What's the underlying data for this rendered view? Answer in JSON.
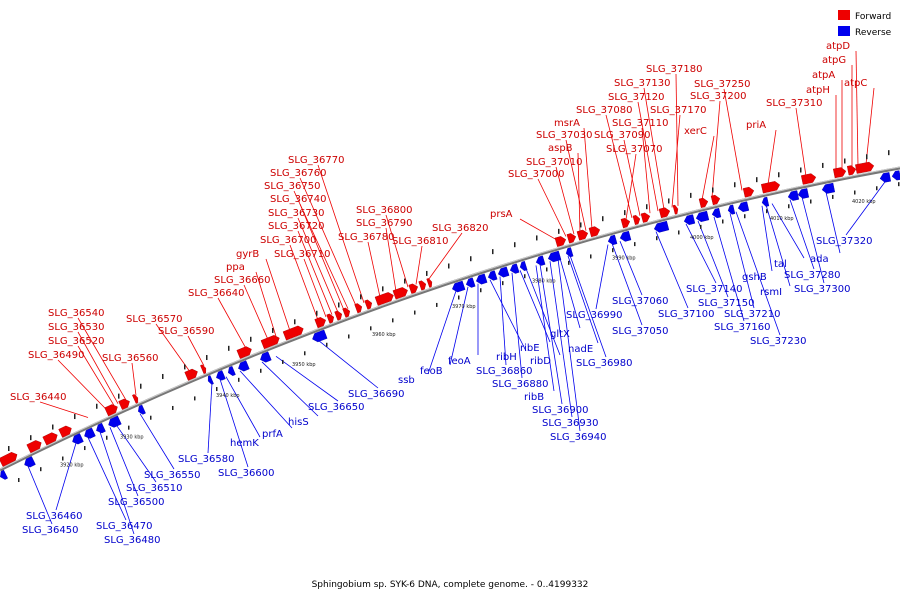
{
  "caption": "Sphingobium sp. SYK-6 DNA, complete genome. - 0..4199332",
  "legend": [
    {
      "label": "Forward",
      "color": "#ee0000"
    },
    {
      "label": "Reverse",
      "color": "#0000ee"
    }
  ],
  "colors": {
    "forward": "#ee0000",
    "reverse": "#0000ee",
    "backbone": "#888888"
  },
  "ticks": [
    "3920 kbp",
    "3930 kbp",
    "3940 kbp",
    "3950 kbp",
    "3960 kbp",
    "3970 kbp",
    "3980 kbp",
    "3990 kbp",
    "4000 kbp",
    "4010 kbp",
    "4020 kbp"
  ],
  "forward_labels": [
    "SLG_36440",
    "SLG_36490",
    "SLG_36520",
    "SLG_36530",
    "SLG_36540",
    "SLG_36560",
    "SLG_36570",
    "SLG_36590",
    "SLG_36640",
    "SLG_36660",
    "ppa",
    "gyrB",
    "SLG_36700",
    "SLG_36710",
    "SLG_36720",
    "SLG_36730",
    "SLG_36740",
    "SLG_36750",
    "SLG_36760",
    "SLG_36770",
    "SLG_36780",
    "SLG_36790",
    "SLG_36800",
    "SLG_36810",
    "SLG_36820",
    "prsA",
    "SLG_37000",
    "SLG_37010",
    "aspB",
    "SLG_37030",
    "msrA",
    "SLG_37070",
    "SLG_37080",
    "SLG_37090",
    "SLG_37110",
    "SLG_37120",
    "SLG_37130",
    "SLG_37170",
    "SLG_37180",
    "xerC",
    "SLG_37200",
    "SLG_37250",
    "priA",
    "SLG_37310",
    "atpH",
    "atpA",
    "atpG",
    "atpD",
    "atpC"
  ],
  "reverse_labels": [
    "SLG_36450",
    "SLG_36460",
    "SLG_36470",
    "SLG_36480",
    "SLG_36500",
    "SLG_36510",
    "SLG_36550",
    "SLG_36580",
    "SLG_36600",
    "hemK",
    "prfA",
    "hisS",
    "SLG_36650",
    "SLG_36690",
    "ssb",
    "feoB",
    "feoA",
    "ribH",
    "SLG_36860",
    "SLG_36880",
    "ribE",
    "ribD",
    "ribB",
    "SLG_36900",
    "SLG_36930",
    "SLG_36940",
    "gltX",
    "nadE",
    "SLG_36980",
    "SLG_36990",
    "SLG_37050",
    "SLG_37060",
    "SLG_37100",
    "SLG_37140",
    "SLG_37150",
    "SLG_37160",
    "SLG_37210",
    "SLG_37230",
    "gshB",
    "rsmI",
    "tal",
    "SLG_37280",
    "SLG_37300",
    "ada",
    "SLG_37320"
  ]
}
